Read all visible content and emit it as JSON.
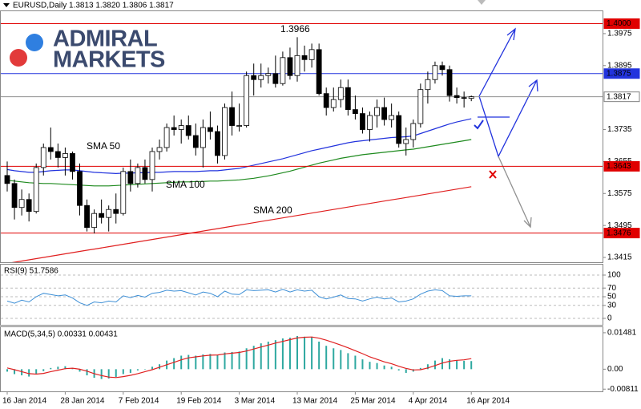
{
  "header": {
    "title": "EURUSD,Daily  1.3813 1.3820 1.3806 1.3817"
  },
  "logo": {
    "line1": "ADMIRAL",
    "line2": "MARKETS"
  },
  "chart_data": [
    {
      "type": "candlestick",
      "categories": [
        "16 Jan 2014",
        null,
        null,
        null,
        null,
        null,
        null,
        null,
        "28 Jan 2014",
        null,
        null,
        null,
        null,
        null,
        null,
        null,
        "7 Feb 2014",
        null,
        null,
        null,
        null,
        null,
        null,
        null,
        "19 Feb 2014",
        null,
        null,
        null,
        null,
        null,
        null,
        null,
        "3 Mar 2014",
        null,
        null,
        null,
        null,
        null,
        null,
        null,
        "13 Mar 2014",
        null,
        null,
        null,
        null,
        null,
        null,
        null,
        "25 Mar 2014",
        null,
        null,
        null,
        null,
        null,
        null,
        null,
        "4 Apr 2014",
        null,
        null,
        null,
        null,
        null,
        null,
        null,
        "16 Apr 2014"
      ],
      "open": [
        1.362,
        1.36,
        1.354,
        1.356,
        1.353,
        1.364,
        1.369,
        1.368,
        1.3665,
        1.3675,
        1.363,
        1.3545,
        1.349,
        1.3525,
        1.3515,
        1.3535,
        1.3525,
        1.363,
        1.36,
        1.364,
        1.361,
        1.368,
        1.369,
        1.374,
        1.3735,
        1.3745,
        1.372,
        1.369,
        1.374,
        1.373,
        1.367,
        1.379,
        1.3745,
        1.3745,
        1.387,
        1.386,
        1.387,
        1.3875,
        1.385,
        1.3915,
        1.387,
        1.392,
        1.391,
        1.3935,
        1.3825,
        1.379,
        1.381,
        1.384,
        1.3785,
        1.3775,
        1.3735,
        1.377,
        1.379,
        1.376,
        1.377,
        1.37,
        1.371,
        1.375,
        1.3835,
        1.386,
        1.3895,
        1.3885,
        1.382,
        1.3815,
        1.3813
      ],
      "high": [
        1.3655,
        1.361,
        1.3585,
        1.3575,
        1.365,
        1.37,
        1.374,
        1.37,
        1.369,
        1.368,
        1.365,
        1.356,
        1.3535,
        1.356,
        1.3545,
        1.3575,
        1.364,
        1.366,
        1.365,
        1.366,
        1.369,
        1.371,
        1.375,
        1.377,
        1.376,
        1.377,
        1.375,
        1.376,
        1.378,
        1.3745,
        1.38,
        1.383,
        1.38,
        1.388,
        1.39,
        1.39,
        1.389,
        1.392,
        1.393,
        1.394,
        1.3966,
        1.3945,
        1.395,
        1.395,
        1.384,
        1.384,
        1.386,
        1.386,
        1.382,
        1.379,
        1.378,
        1.381,
        1.3815,
        1.38,
        1.378,
        1.374,
        1.376,
        1.385,
        1.388,
        1.3905,
        1.3905,
        1.3895,
        1.384,
        1.383,
        1.382
      ],
      "low": [
        1.358,
        1.351,
        1.352,
        1.3505,
        1.3525,
        1.362,
        1.366,
        1.364,
        1.362,
        1.361,
        1.352,
        1.348,
        1.3475,
        1.35,
        1.348,
        1.35,
        1.352,
        1.358,
        1.359,
        1.36,
        1.358,
        1.366,
        1.368,
        1.372,
        1.37,
        1.371,
        1.367,
        1.364,
        1.371,
        1.365,
        1.366,
        1.372,
        1.373,
        1.374,
        1.382,
        1.384,
        1.385,
        1.384,
        1.3845,
        1.386,
        1.3855,
        1.388,
        1.389,
        1.382,
        1.377,
        1.378,
        1.379,
        1.377,
        1.376,
        1.3725,
        1.3705,
        1.374,
        1.3745,
        1.374,
        1.369,
        1.367,
        1.369,
        1.374,
        1.38,
        1.385,
        1.387,
        1.3805,
        1.38,
        1.379,
        1.3806
      ],
      "close": [
        1.36,
        1.354,
        1.356,
        1.353,
        1.364,
        1.369,
        1.368,
        1.3665,
        1.3675,
        1.363,
        1.3545,
        1.349,
        1.3525,
        1.3515,
        1.3535,
        1.3525,
        1.363,
        1.36,
        1.364,
        1.361,
        1.368,
        1.369,
        1.374,
        1.3735,
        1.3745,
        1.372,
        1.369,
        1.374,
        1.373,
        1.367,
        1.379,
        1.3745,
        1.3745,
        1.387,
        1.386,
        1.387,
        1.3875,
        1.385,
        1.3915,
        1.387,
        1.392,
        1.391,
        1.3935,
        1.3825,
        1.379,
        1.381,
        1.384,
        1.3785,
        1.3775,
        1.3735,
        1.377,
        1.379,
        1.376,
        1.377,
        1.37,
        1.371,
        1.375,
        1.3835,
        1.386,
        1.3895,
        1.3885,
        1.382,
        1.3815,
        1.3813,
        1.3817
      ],
      "up_color": "#ffffff",
      "down_color": "#000000",
      "series": [
        {
          "name": "SMA 50",
          "color": "#2233dd",
          "values": [
            1.3635,
            1.3632,
            1.363,
            1.3628,
            1.3628,
            1.363,
            1.3632,
            1.3633,
            1.3634,
            1.3634,
            1.3632,
            1.363,
            1.3628,
            1.3627,
            1.3626,
            1.3625,
            1.3626,
            1.3626,
            1.3627,
            1.3627,
            1.3628,
            1.3628,
            1.3629,
            1.363,
            1.363,
            1.363,
            1.363,
            1.3631,
            1.3632,
            1.3632,
            1.3634,
            1.3636,
            1.3638,
            1.3642,
            1.3646,
            1.365,
            1.3654,
            1.3658,
            1.3662,
            1.3667,
            1.3672,
            1.3677,
            1.3682,
            1.3686,
            1.369,
            1.3694,
            1.3698,
            1.3702,
            1.3705,
            1.3707,
            1.3709,
            1.3711,
            1.3713,
            1.3715,
            1.3716,
            1.3717,
            1.3719,
            1.3725,
            1.3731,
            1.3737,
            1.3743,
            1.3749,
            1.3754,
            1.3758,
            1.3762
          ]
        },
        {
          "name": "SMA 100",
          "color": "#1e8a1e",
          "values": [
            1.3608,
            1.3606,
            1.3604,
            1.3602,
            1.3601,
            1.36,
            1.36,
            1.3599,
            1.3598,
            1.3597,
            1.3596,
            1.3595,
            1.3594,
            1.3594,
            1.3594,
            1.3595,
            1.3596,
            1.3597,
            1.3598,
            1.3599,
            1.36,
            1.3601,
            1.3602,
            1.3603,
            1.3604,
            1.3604,
            1.3605,
            1.3605,
            1.3606,
            1.3606,
            1.3607,
            1.3608,
            1.3609,
            1.3611,
            1.3613,
            1.3616,
            1.3619,
            1.3623,
            1.3627,
            1.3631,
            1.3636,
            1.3641,
            1.3646,
            1.3651,
            1.3655,
            1.3659,
            1.3663,
            1.3666,
            1.3669,
            1.3672,
            1.3674,
            1.3676,
            1.3678,
            1.368,
            1.3682,
            1.3684,
            1.3686,
            1.3689,
            1.3692,
            1.3695,
            1.3698,
            1.3701,
            1.3704,
            1.3707,
            1.371
          ]
        },
        {
          "name": "SMA 200",
          "color": "#e02020",
          "values": [
            1.34,
            1.3403,
            1.3406,
            1.3409,
            1.3412,
            1.3415,
            1.3418,
            1.3421,
            1.3424,
            1.3427,
            1.343,
            1.3433,
            1.3436,
            1.3439,
            1.3442,
            1.3445,
            1.3448,
            1.3451,
            1.3454,
            1.3457,
            1.346,
            1.3463,
            1.3466,
            1.3469,
            1.3472,
            1.3475,
            1.3478,
            1.3481,
            1.3484,
            1.3487,
            1.349,
            1.3493,
            1.3496,
            1.3499,
            1.3502,
            1.3505,
            1.3508,
            1.3511,
            1.3514,
            1.3517,
            1.352,
            1.3523,
            1.3526,
            1.3529,
            1.3532,
            1.3535,
            1.3538,
            1.3541,
            1.3544,
            1.3547,
            1.355,
            1.3553,
            1.3556,
            1.3559,
            1.3562,
            1.3565,
            1.3568,
            1.3571,
            1.3574,
            1.3577,
            1.358,
            1.3583,
            1.3586,
            1.3589,
            1.3592
          ]
        }
      ],
      "levels": [
        {
          "value": 1.4,
          "label": "1.4000",
          "color": "#e00000"
        },
        {
          "value": 1.3875,
          "label": "1.3875",
          "color": "#2233dd"
        },
        {
          "value": 1.3817,
          "label": "1.3817",
          "color": "#909090"
        },
        {
          "value": 1.3643,
          "label": "1.3643",
          "color": "#e00000"
        },
        {
          "value": 1.3476,
          "label": "1.3476",
          "color": "#e00000"
        }
      ],
      "annotations": [
        {
          "text": "1.3966"
        }
      ],
      "ylim": [
        1.3403,
        1.4031
      ],
      "yticks": [
        1.3975,
        1.3895,
        1.3735,
        1.3655,
        1.3575,
        1.3495,
        1.3415
      ]
    },
    {
      "type": "line",
      "title": "RSI(9) 51.7586",
      "color": "#3d8fd6",
      "values": [
        40,
        35,
        42,
        38,
        50,
        58,
        55,
        52,
        54,
        47,
        36,
        30,
        38,
        36,
        40,
        38,
        52,
        48,
        53,
        49,
        58,
        60,
        65,
        63,
        64,
        59,
        54,
        61,
        58,
        50,
        63,
        56,
        55,
        66,
        64,
        65,
        66,
        61,
        67,
        61,
        66,
        63,
        65,
        50,
        45,
        49,
        54,
        46,
        45,
        40,
        45,
        49,
        45,
        47,
        38,
        40,
        45,
        56,
        63,
        66,
        64,
        52,
        51,
        52,
        52
      ],
      "ylim": [
        0,
        100
      ],
      "yticks": [
        100,
        70,
        50,
        30,
        0
      ]
    },
    {
      "type": "bar",
      "title": "MACD(5,34,5) 0.00331 0.00431",
      "color": "#2ea8a0",
      "values": [
        -0.001,
        -0.002,
        -0.0025,
        -0.003,
        -0.002,
        -0.0008,
        0.0005,
        0.001,
        0.0012,
        0.0005,
        -0.001,
        -0.0025,
        -0.0035,
        -0.004,
        -0.0038,
        -0.0032,
        -0.002,
        -0.0015,
        -0.0005,
        0.0,
        0.001,
        0.002,
        0.0035,
        0.0045,
        0.0055,
        0.0058,
        0.0055,
        0.006,
        0.0062,
        0.0058,
        0.0068,
        0.007,
        0.0072,
        0.0085,
        0.0095,
        0.0105,
        0.0112,
        0.0118,
        0.0125,
        0.0128,
        0.0135,
        0.0132,
        0.013,
        0.0112,
        0.0095,
        0.0085,
        0.0078,
        0.0065,
        0.0055,
        0.004,
        0.003,
        0.0025,
        0.0015,
        0.001,
        -0.0005,
        -0.0015,
        -0.001,
        0.0005,
        0.002,
        0.0035,
        0.0045,
        0.004,
        0.0036,
        0.0034,
        0.0033
      ],
      "line": {
        "color": "#e02020",
        "values": [
          0.0005,
          -0.0002,
          -0.001,
          -0.0018,
          -0.002,
          -0.0017,
          -0.001,
          -0.0004,
          0.0002,
          0.0004,
          0.0,
          -0.0008,
          -0.0018,
          -0.0026,
          -0.0032,
          -0.0034,
          -0.003,
          -0.0025,
          -0.0018,
          -0.001,
          -0.0002,
          0.0008,
          0.0018,
          0.0028,
          0.0038,
          0.0046,
          0.005,
          0.0054,
          0.0057,
          0.0058,
          0.0062,
          0.0065,
          0.0068,
          0.0074,
          0.0082,
          0.009,
          0.0098,
          0.0106,
          0.0113,
          0.012,
          0.0127,
          0.013,
          0.0131,
          0.0126,
          0.0118,
          0.0108,
          0.0098,
          0.0087,
          0.0075,
          0.0063,
          0.005,
          0.004,
          0.003,
          0.0022,
          0.0012,
          0.0003,
          -0.0003,
          -0.0002,
          0.0005,
          0.0015,
          0.0025,
          0.0032,
          0.0036,
          0.0038,
          0.0043
        ]
      },
      "ylim": [
        -0.00901,
        0.01674
      ],
      "yticks": [
        0.01481,
        {
          "value": 0,
          "label": "0.00"
        },
        -0.00811
      ]
    }
  ]
}
